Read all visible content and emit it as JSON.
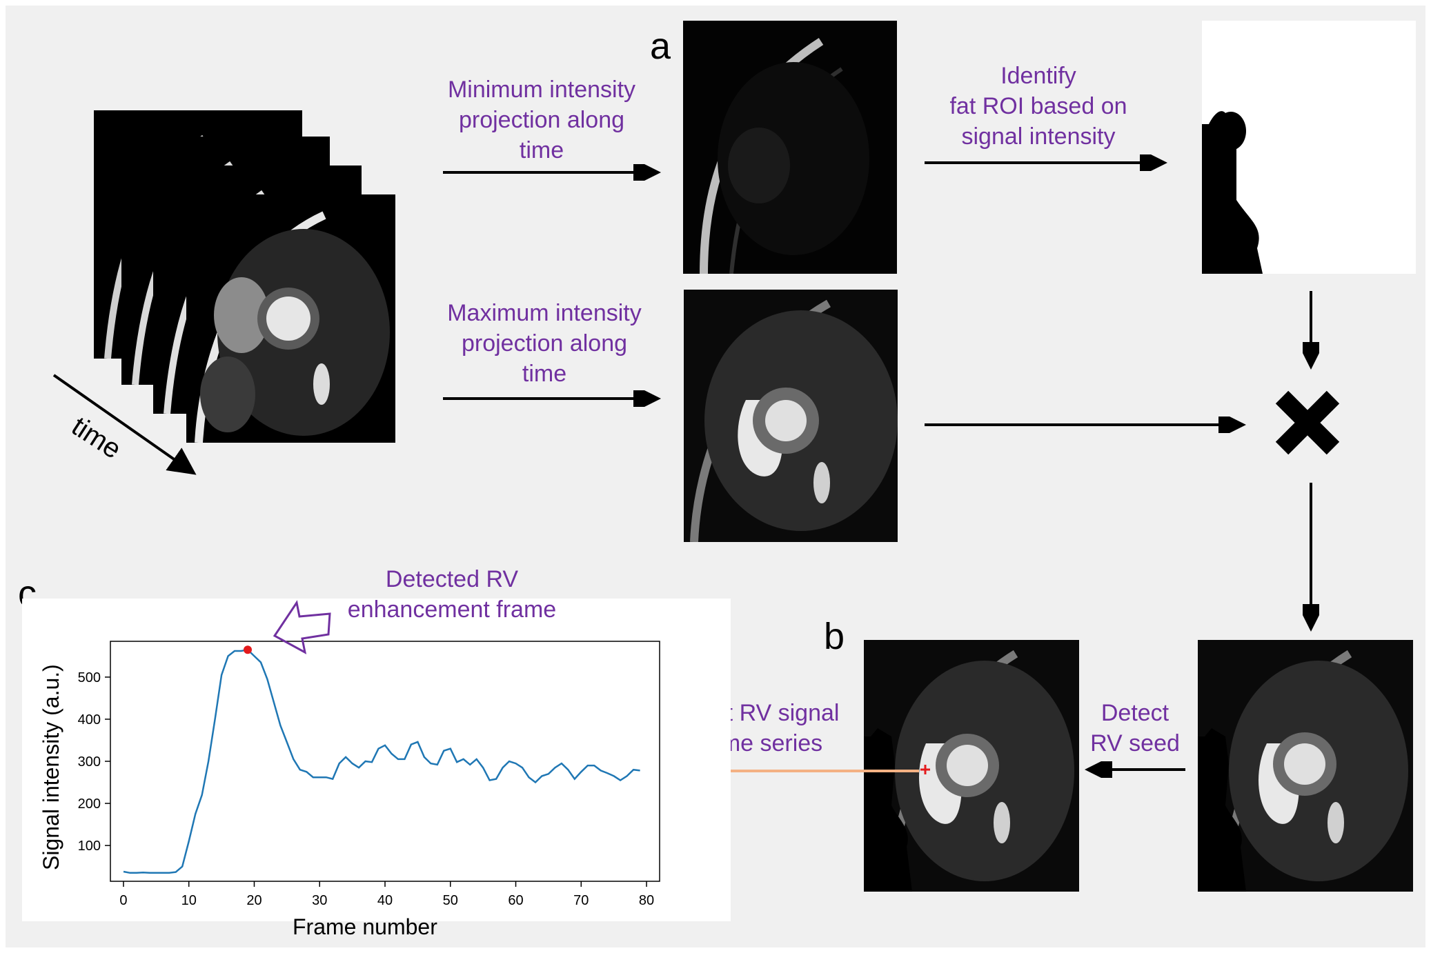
{
  "panel_letters": {
    "a": "a",
    "b": "b",
    "c": "c"
  },
  "labels": {
    "time": "time",
    "min_projection": [
      "Minimum intensity",
      "projection along",
      "time"
    ],
    "max_projection": [
      "Maximum intensity",
      "projection along",
      "time"
    ],
    "identify_fat": [
      "Identify",
      "fat ROI based on",
      "signal intensity"
    ],
    "detect_seed": [
      "Detect",
      "RV seed"
    ],
    "plot_rv": [
      "Plot RV signal",
      "time series"
    ],
    "detected_frame": [
      "Detected RV",
      "enhancement frame"
    ]
  },
  "multiply_symbol": "✖",
  "colors": {
    "label": "#7030a0",
    "curve": "#1f77b4",
    "peak": "#e31a1c",
    "orange_arrow": "#f4b183",
    "background": "#f0f0f0"
  },
  "chart_data": {
    "type": "line",
    "xlabel": "Frame number",
    "ylabel": "Signal intensity (a.u.)",
    "xlim": [
      -2,
      82
    ],
    "ylim": [
      15,
      585
    ],
    "xticks": [
      0,
      10,
      20,
      30,
      40,
      50,
      60,
      70,
      80
    ],
    "yticks": [
      100,
      200,
      300,
      400,
      500
    ],
    "x": [
      0,
      1,
      2,
      3,
      4,
      5,
      6,
      7,
      8,
      9,
      10,
      11,
      12,
      13,
      14,
      15,
      16,
      17,
      18,
      19,
      20,
      21,
      22,
      23,
      24,
      25,
      26,
      27,
      28,
      29,
      30,
      31,
      32,
      33,
      34,
      35,
      36,
      37,
      38,
      39,
      40,
      41,
      42,
      43,
      44,
      45,
      46,
      47,
      48,
      49,
      50,
      51,
      52,
      53,
      54,
      55,
      56,
      57,
      58,
      59,
      60,
      61,
      62,
      63,
      64,
      65,
      66,
      67,
      68,
      69,
      70,
      71,
      72,
      73,
      74,
      75,
      76,
      77,
      78,
      79
    ],
    "y": [
      38,
      35,
      35,
      36,
      35,
      35,
      35,
      35,
      37,
      50,
      110,
      175,
      220,
      300,
      400,
      505,
      550,
      562,
      562,
      565,
      550,
      535,
      495,
      440,
      385,
      345,
      305,
      280,
      275,
      262,
      262,
      262,
      258,
      295,
      310,
      295,
      285,
      300,
      298,
      330,
      338,
      318,
      305,
      305,
      340,
      346,
      310,
      295,
      292,
      325,
      330,
      298,
      305,
      292,
      305,
      285,
      255,
      258,
      285,
      300,
      295,
      285,
      262,
      250,
      265,
      270,
      285,
      295,
      280,
      258,
      275,
      290,
      290,
      278,
      272,
      265,
      255,
      265,
      280,
      278
    ],
    "peak": {
      "x": 19,
      "y": 565
    }
  }
}
